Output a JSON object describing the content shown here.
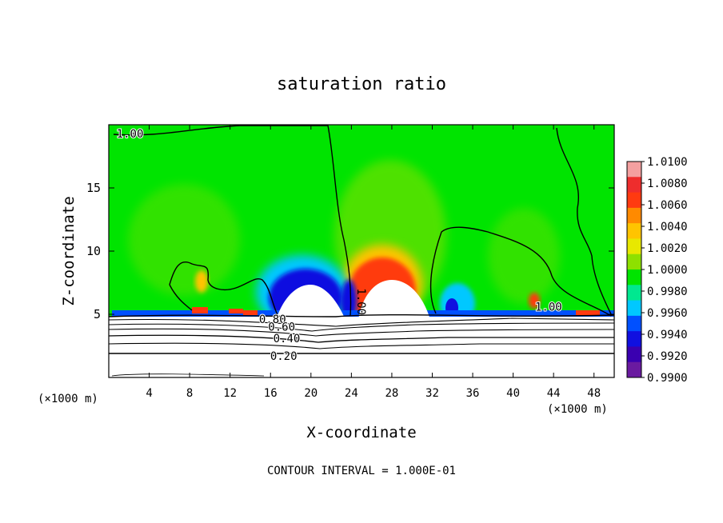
{
  "chart_data": {
    "type": "heatmap",
    "title": "saturation ratio",
    "xlabel": "X-coordinate",
    "ylabel": "Z-coordinate",
    "x_unit": "(×1000 m)",
    "x_unit_right": "(×1000 m)",
    "xlim": [
      0,
      50
    ],
    "ylim": [
      0,
      20
    ],
    "xticks": [
      4,
      8,
      12,
      16,
      20,
      24,
      28,
      32,
      36,
      40,
      44,
      48
    ],
    "yticks": [
      5,
      10,
      15
    ],
    "footer": "CONTOUR INTERVAL = 1.000E-01",
    "colorbar": {
      "labels": [
        "1.0100",
        "1.0080",
        "1.0060",
        "1.0040",
        "1.0020",
        "1.0000",
        "0.9980",
        "0.9960",
        "0.9940",
        "0.9920",
        "0.9900"
      ],
      "colors": [
        "#f4a0a0",
        "#ee2d2d",
        "#ff3a10",
        "#ff8a00",
        "#ffc400",
        "#e8e800",
        "#8ee000",
        "#00e400",
        "#00e890",
        "#00c8ff",
        "#0050ff",
        "#1010e0",
        "#3a00b0",
        "#6a1aa0"
      ]
    },
    "contour_labels": [
      {
        "text": "1.00",
        "x": 2.1,
        "y": 19.0
      },
      {
        "text": "1.00",
        "x": 24.6,
        "y": 6.0
      },
      {
        "text": "1.00",
        "x": 43.5,
        "y": 5.3
      },
      {
        "text": "0.80",
        "x": 16.2,
        "y": 4.3
      },
      {
        "text": "0.60",
        "x": 17.1,
        "y": 3.7
      },
      {
        "text": "0.40",
        "x": 17.6,
        "y": 2.8
      },
      {
        "text": "0.20",
        "x": 17.3,
        "y": 1.4
      }
    ],
    "annotations": [
      "1.00",
      "0.80",
      "0.60",
      "0.40",
      "0.20"
    ]
  }
}
